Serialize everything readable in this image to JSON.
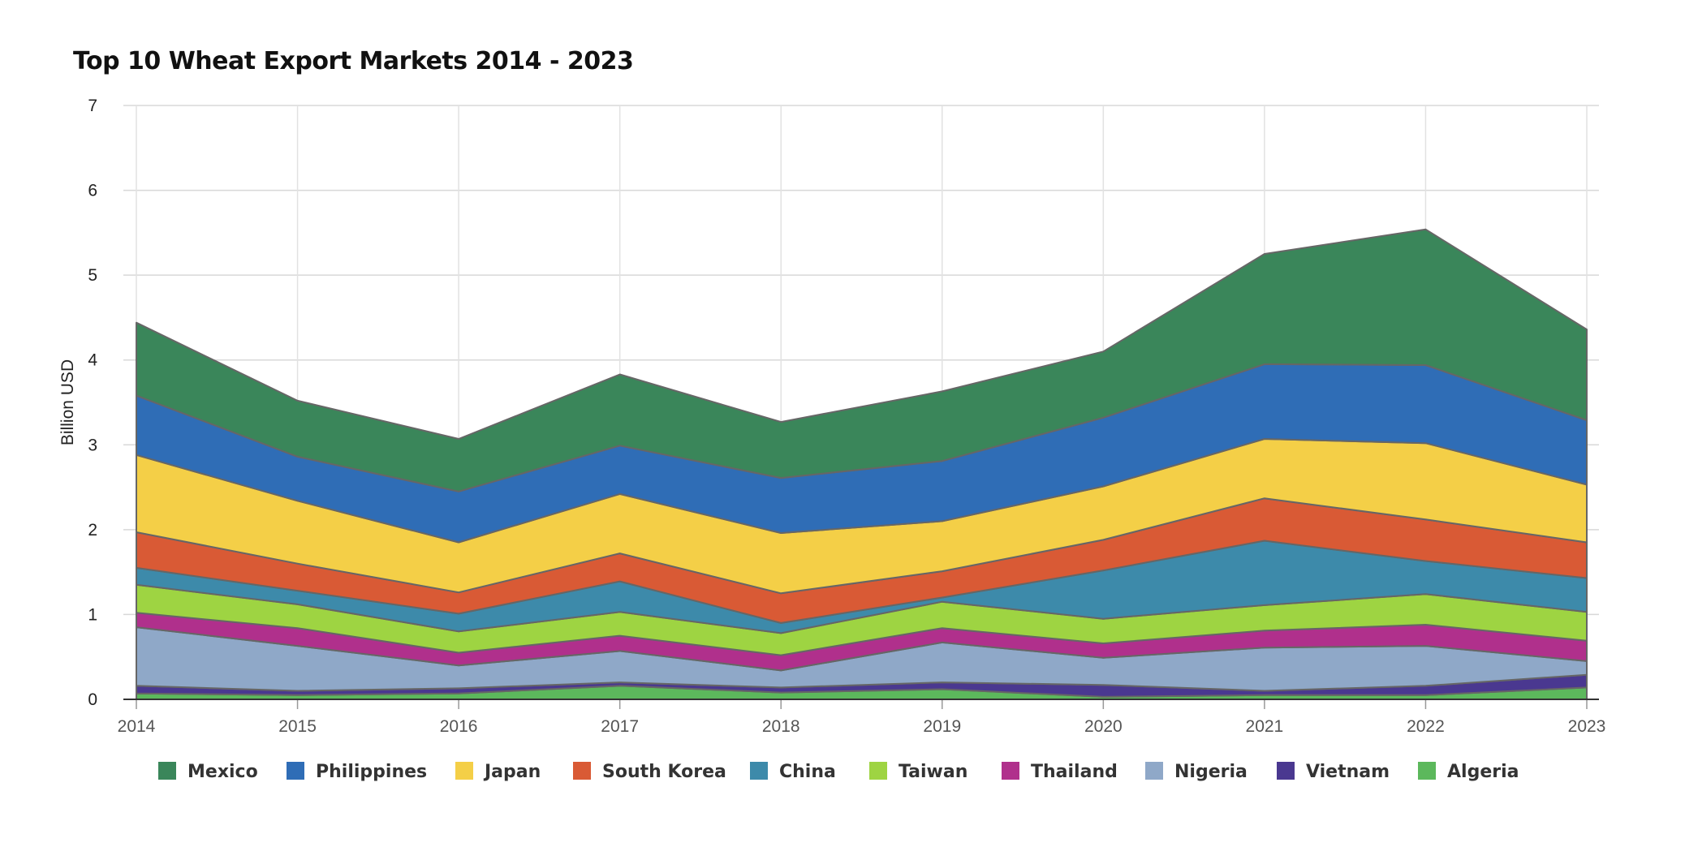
{
  "chart_data": {
    "type": "area",
    "stacked": true,
    "title": "Top 10 Wheat Export Markets 2014 - 2023",
    "xlabel": "",
    "ylabel": "Billion USD",
    "ylim": [
      0,
      7
    ],
    "yticks": [
      0,
      1,
      2,
      3,
      4,
      5,
      6,
      7
    ],
    "grid": true,
    "legend_position": "bottom",
    "x": [
      "2014",
      "2015",
      "2016",
      "2017",
      "2018",
      "2019",
      "2020",
      "2021",
      "2022",
      "2023"
    ],
    "series": [
      {
        "name": "Algeria",
        "color": "#5cb85c",
        "values": [
          0.07,
          0.05,
          0.07,
          0.16,
          0.08,
          0.12,
          0.03,
          0.05,
          0.05,
          0.14
        ]
      },
      {
        "name": "Vietnam",
        "color": "#4a3890",
        "values": [
          0.09,
          0.05,
          0.06,
          0.04,
          0.06,
          0.08,
          0.14,
          0.05,
          0.11,
          0.15
        ]
      },
      {
        "name": "Nigeria",
        "color": "#8fa8c8",
        "values": [
          0.69,
          0.53,
          0.27,
          0.37,
          0.2,
          0.47,
          0.32,
          0.51,
          0.47,
          0.16
        ]
      },
      {
        "name": "Thailand",
        "color": "#b0308c",
        "values": [
          0.17,
          0.21,
          0.15,
          0.18,
          0.18,
          0.17,
          0.17,
          0.2,
          0.25,
          0.24
        ]
      },
      {
        "name": "Taiwan",
        "color": "#9ed442",
        "values": [
          0.33,
          0.28,
          0.25,
          0.28,
          0.26,
          0.31,
          0.29,
          0.3,
          0.36,
          0.34
        ]
      },
      {
        "name": "China",
        "color": "#3d8aaa",
        "values": [
          0.2,
          0.16,
          0.21,
          0.36,
          0.12,
          0.05,
          0.57,
          0.76,
          0.39,
          0.4
        ]
      },
      {
        "name": "South Korea",
        "color": "#d95a35",
        "values": [
          0.42,
          0.32,
          0.25,
          0.33,
          0.35,
          0.31,
          0.36,
          0.5,
          0.49,
          0.42
        ]
      },
      {
        "name": "Japan",
        "color": "#f4cf47",
        "values": [
          0.91,
          0.74,
          0.59,
          0.7,
          0.71,
          0.59,
          0.63,
          0.7,
          0.9,
          0.68
        ]
      },
      {
        "name": "Philippines",
        "color": "#2f6db6",
        "values": [
          0.7,
          0.52,
          0.6,
          0.57,
          0.65,
          0.71,
          0.81,
          0.88,
          0.92,
          0.76
        ]
      },
      {
        "name": "Mexico",
        "color": "#3a865a",
        "values": [
          0.86,
          0.66,
          0.62,
          0.84,
          0.66,
          0.82,
          0.78,
          1.3,
          1.6,
          1.07
        ]
      }
    ],
    "legend": [
      "Mexico",
      "Philippines",
      "Japan",
      "South Korea",
      "China",
      "Taiwan",
      "Thailand",
      "Nigeria",
      "Vietnam",
      "Algeria"
    ]
  }
}
